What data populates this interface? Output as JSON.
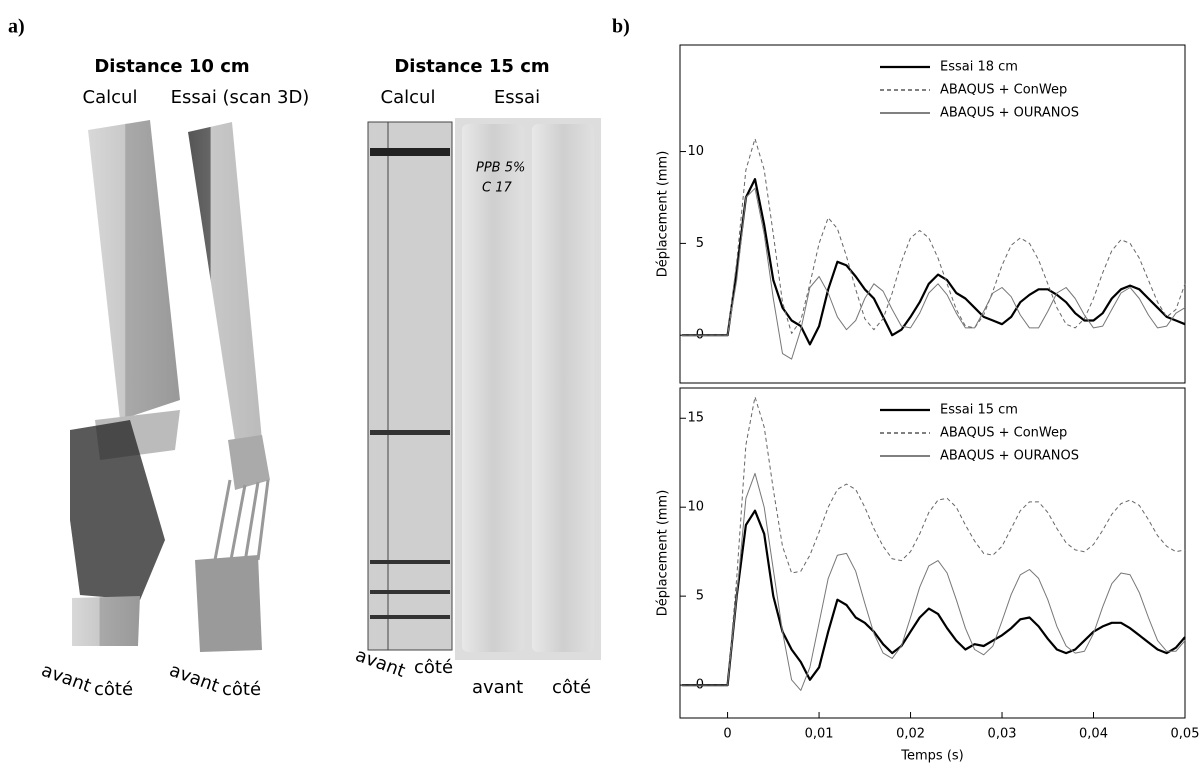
{
  "panel_a": {
    "label": "a)",
    "groups": [
      {
        "title": "Distance 10 cm",
        "left": "Calcul",
        "right": "Essai (scan 3D)",
        "views": [
          "avant",
          "côté",
          "avant",
          "côté"
        ]
      },
      {
        "title": "Distance 15 cm",
        "left": "Calcul",
        "right": "Essai",
        "views": [
          "avant",
          "côté",
          "avant",
          "côté"
        ]
      }
    ],
    "specimen_marks": [
      "PPB 5%",
      "C 17"
    ]
  },
  "panel_b": {
    "label": "b)"
  },
  "chart_data": [
    {
      "type": "line",
      "ylabel": "Déplacement (mm)",
      "xlim": [
        -0.0052,
        0.05
      ],
      "ylim": [
        -2.6,
        15.8
      ],
      "yticks": [
        0,
        5,
        10
      ],
      "legend": "upper right",
      "x": [
        -0.005,
        0,
        0.001,
        0.002,
        0.003,
        0.004,
        0.005,
        0.006,
        0.007,
        0.008,
        0.009,
        0.01,
        0.011,
        0.012,
        0.013,
        0.014,
        0.015,
        0.016,
        0.017,
        0.018,
        0.019,
        0.02,
        0.021,
        0.022,
        0.023,
        0.024,
        0.025,
        0.026,
        0.027,
        0.028,
        0.029,
        0.03,
        0.031,
        0.032,
        0.033,
        0.034,
        0.035,
        0.036,
        0.037,
        0.038,
        0.039,
        0.04,
        0.041,
        0.042,
        0.043,
        0.044,
        0.045,
        0.046,
        0.047,
        0.048,
        0.049,
        0.05
      ],
      "series": [
        {
          "name": "Essai 18 cm",
          "color": "#000000",
          "style": "thick",
          "values": [
            0,
            0,
            3.5,
            7.5,
            8.5,
            6,
            3,
            1.5,
            0.8,
            0.5,
            -0.5,
            0.5,
            2.5,
            4,
            3.8,
            3.2,
            2.5,
            2,
            1,
            0,
            0.3,
            1,
            1.8,
            2.8,
            3.3,
            3,
            2.3,
            2,
            1.5,
            1,
            0.8,
            0.6,
            1,
            1.8,
            2.2,
            2.5,
            2.5,
            2.2,
            1.8,
            1.2,
            0.8,
            0.8,
            1.2,
            2,
            2.5,
            2.7,
            2.5,
            2,
            1.5,
            1,
            0.8,
            0.6
          ]
        },
        {
          "name": "ABAQUS + ConWep",
          "color": "#666666",
          "style": "dashed",
          "values": [
            0,
            0,
            4,
            9,
            10.7,
            9,
            5.5,
            1.8,
            0.1,
            0.8,
            2.8,
            5,
            6.4,
            5.8,
            4.3,
            2.5,
            0.9,
            0.3,
            0.9,
            2.3,
            4,
            5.3,
            5.7,
            5.3,
            4.2,
            2.8,
            1.4,
            0.5,
            0.4,
            1.1,
            2.4,
            3.8,
            4.9,
            5.3,
            5,
            4.1,
            2.8,
            1.5,
            0.6,
            0.4,
            0.9,
            2,
            3.4,
            4.6,
            5.2,
            5,
            4.2,
            3,
            1.8,
            1,
            1.4,
            2.8
          ]
        },
        {
          "name": "ABAQUS + OURANOS",
          "color": "#777777",
          "style": "thin",
          "values": [
            0,
            0,
            3,
            7.5,
            8,
            5.5,
            2,
            -1,
            -1.3,
            0.3,
            2.6,
            3.2,
            2.3,
            1,
            0.3,
            0.8,
            2,
            2.8,
            2.4,
            1.4,
            0.5,
            0.4,
            1.2,
            2.3,
            2.8,
            2.2,
            1.2,
            0.4,
            0.4,
            1.3,
            2.3,
            2.6,
            2.1,
            1.1,
            0.4,
            0.4,
            1.3,
            2.3,
            2.6,
            2,
            1.1,
            0.4,
            0.5,
            1.4,
            2.3,
            2.6,
            2,
            1.1,
            0.4,
            0.5,
            1.2,
            1.5
          ]
        }
      ]
    },
    {
      "type": "line",
      "ylabel": "Déplacement (mm)",
      "xlabel": "Temps (s)",
      "xlim": [
        -0.0052,
        0.05
      ],
      "ylim": [
        -1.85,
        16.7
      ],
      "yticks": [
        0,
        5,
        10,
        15
      ],
      "xticks": [
        0,
        {
          "value": 0.01,
          "label": "0,01"
        },
        {
          "value": 0.02,
          "label": "0,02"
        },
        {
          "value": 0.03,
          "label": "0,03"
        },
        {
          "value": 0.04,
          "label": "0,04"
        },
        {
          "value": 0.05,
          "label": "0,05"
        }
      ],
      "legend": "upper right",
      "x": [
        -0.005,
        0,
        0.001,
        0.002,
        0.003,
        0.004,
        0.005,
        0.006,
        0.007,
        0.008,
        0.009,
        0.01,
        0.011,
        0.012,
        0.013,
        0.014,
        0.015,
        0.016,
        0.017,
        0.018,
        0.019,
        0.02,
        0.021,
        0.022,
        0.023,
        0.024,
        0.025,
        0.026,
        0.027,
        0.028,
        0.029,
        0.03,
        0.031,
        0.032,
        0.033,
        0.034,
        0.035,
        0.036,
        0.037,
        0.038,
        0.039,
        0.04,
        0.041,
        0.042,
        0.043,
        0.044,
        0.045,
        0.046,
        0.047,
        0.048,
        0.049,
        0.05
      ],
      "series": [
        {
          "name": "Essai 15 cm",
          "color": "#000000",
          "style": "thick",
          "values": [
            0,
            0,
            5,
            9,
            9.8,
            8.5,
            5,
            3,
            2,
            1.3,
            0.3,
            1,
            3,
            4.8,
            4.5,
            3.8,
            3.5,
            3,
            2.3,
            1.8,
            2.2,
            3,
            3.8,
            4.3,
            4,
            3.2,
            2.5,
            2,
            2.3,
            2.2,
            2.5,
            2.8,
            3.2,
            3.7,
            3.8,
            3.3,
            2.6,
            2,
            1.8,
            2,
            2.5,
            3,
            3.3,
            3.5,
            3.5,
            3.2,
            2.8,
            2.4,
            2,
            1.8,
            2.1,
            2.7
          ]
        },
        {
          "name": "ABAQUS + ConWep",
          "color": "#666666",
          "style": "dashed",
          "values": [
            0,
            0,
            6,
            13.5,
            16.2,
            14.5,
            11,
            7.8,
            6.3,
            6.4,
            7.3,
            8.6,
            10,
            11,
            11.3,
            11,
            10,
            8.8,
            7.8,
            7.1,
            7,
            7.5,
            8.5,
            9.7,
            10.4,
            10.5,
            10,
            9,
            8.1,
            7.4,
            7.3,
            7.8,
            8.8,
            9.8,
            10.3,
            10.3,
            9.7,
            8.8,
            8,
            7.6,
            7.5,
            7.9,
            8.7,
            9.6,
            10.2,
            10.4,
            10.1,
            9.3,
            8.4,
            7.8,
            7.5,
            7.6
          ]
        },
        {
          "name": "ABAQUS + OURANOS",
          "color": "#777777",
          "style": "thin",
          "values": [
            0,
            0,
            5,
            10.5,
            11.9,
            10,
            6.5,
            3,
            0.3,
            -0.3,
            1,
            3.5,
            6,
            7.3,
            7.4,
            6.4,
            4.6,
            2.9,
            1.8,
            1.5,
            2.2,
            3.8,
            5.5,
            6.7,
            7,
            6.3,
            4.8,
            3.2,
            2,
            1.7,
            2.2,
            3.6,
            5.1,
            6.2,
            6.5,
            6,
            4.8,
            3.3,
            2.2,
            1.8,
            1.9,
            2.9,
            4.4,
            5.7,
            6.3,
            6.2,
            5.2,
            3.8,
            2.5,
            1.9,
            1.9,
            2.5
          ]
        }
      ]
    }
  ]
}
